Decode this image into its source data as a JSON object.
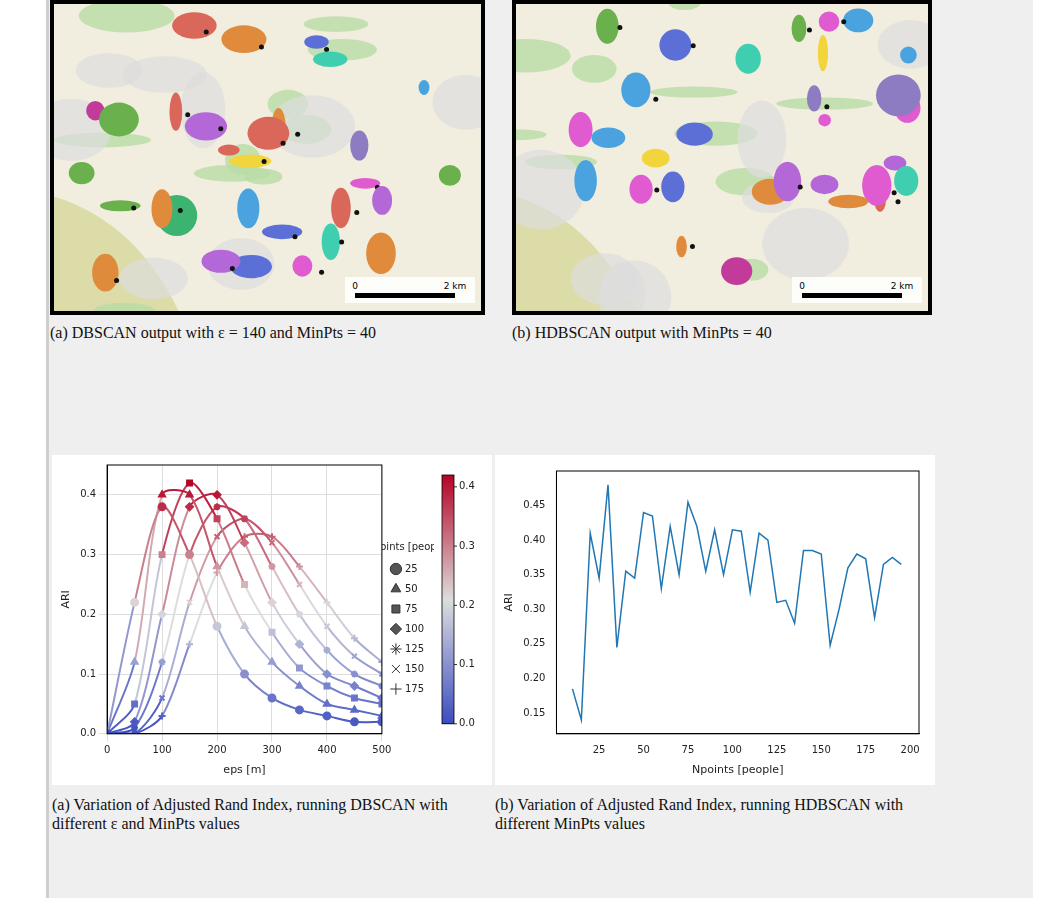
{
  "maps": [
    {
      "caption": "(a) DBSCAN output with ε = 140 and MinPts = 40",
      "scale_bar_labels": [
        "0",
        "2 km"
      ]
    },
    {
      "caption": "(b) HDBSCAN output with MinPts = 40",
      "scale_bar_labels": [
        "0",
        "2 km"
      ]
    }
  ],
  "chart_data": [
    {
      "type": "line",
      "caption": "(a) Variation of Adjusted Rand Index, running DBSCAN with different ε and MinPts values",
      "x_label": "eps [m]",
      "y_label": "ARI",
      "legend_title": "Npoints [people]",
      "x": [
        0,
        50,
        100,
        150,
        200,
        250,
        300,
        350,
        400,
        450,
        500
      ],
      "xlim": [
        0,
        500
      ],
      "xticks": [
        0,
        100,
        200,
        300,
        400,
        500
      ],
      "ylim": [
        0,
        0.45
      ],
      "yticks": [
        {
          "value": 0,
          "label": "0.0"
        },
        0.1,
        0.2,
        0.3,
        0.4
      ],
      "grid": true,
      "legend": "right",
      "series": [
        {
          "name": "25",
          "marker": "circle",
          "values": [
            0,
            0.22,
            0.38,
            0.3,
            0.18,
            0.1,
            0.06,
            0.04,
            0.03,
            0.02,
            0.02
          ]
        },
        {
          "name": "50",
          "marker": "triangle",
          "values": [
            0,
            0.12,
            0.4,
            0.4,
            0.28,
            0.18,
            0.12,
            0.08,
            0.05,
            0.04,
            0.03
          ]
        },
        {
          "name": "75",
          "marker": "rect",
          "values": [
            0,
            0.05,
            0.3,
            0.42,
            0.36,
            0.25,
            0.17,
            0.11,
            0.08,
            0.06,
            0.05
          ]
        },
        {
          "name": "100",
          "marker": "rectRot",
          "values": [
            0,
            0.02,
            0.2,
            0.38,
            0.4,
            0.32,
            0.22,
            0.15,
            0.1,
            0.08,
            0.06
          ]
        },
        {
          "name": "125",
          "marker": "star",
          "values": [
            0,
            0.01,
            0.12,
            0.3,
            0.38,
            0.36,
            0.28,
            0.2,
            0.14,
            0.1,
            0.08
          ]
        },
        {
          "name": "150",
          "marker": "crossRot",
          "values": [
            0,
            0,
            0.06,
            0.22,
            0.33,
            0.36,
            0.32,
            0.25,
            0.18,
            0.13,
            0.1
          ]
        },
        {
          "name": "175",
          "marker": "cross",
          "values": [
            0,
            0,
            0.03,
            0.15,
            0.27,
            0.33,
            0.33,
            0.28,
            0.22,
            0.16,
            0.12
          ]
        }
      ],
      "colorbar": {
        "range": [
          0,
          0.42
        ],
        "ticks": [
          {
            "value": 0,
            "label": "0.0"
          },
          0.1,
          0.2,
          0.3,
          0.4
        ]
      }
    },
    {
      "type": "line",
      "caption": "(b) Variation of Adjusted Rand Index, running HDBSCAN with different MinPts values",
      "x_label": "Npoints [people]",
      "y_label": "ARI",
      "x": [
        10,
        15,
        20,
        25,
        30,
        35,
        40,
        45,
        50,
        55,
        60,
        65,
        70,
        75,
        80,
        85,
        90,
        95,
        100,
        105,
        110,
        115,
        120,
        125,
        130,
        135,
        140,
        145,
        150,
        155,
        160,
        165,
        170,
        175,
        180,
        185,
        190,
        195
      ],
      "values": [
        0.185,
        0.14,
        0.41,
        0.345,
        0.48,
        0.245,
        0.355,
        0.345,
        0.44,
        0.435,
        0.33,
        0.42,
        0.35,
        0.455,
        0.42,
        0.355,
        0.415,
        0.35,
        0.415,
        0.413,
        0.325,
        0.41,
        0.4,
        0.31,
        0.313,
        0.28,
        0.385,
        0.385,
        0.38,
        0.248,
        0.3,
        0.36,
        0.38,
        0.373,
        0.288,
        0.365,
        0.375,
        0.365
      ],
      "color": "#1f77b4",
      "xlim": [
        1,
        205
      ],
      "xticks": [
        25,
        50,
        75,
        100,
        125,
        150,
        175,
        200
      ],
      "ylim": [
        0.12,
        0.5
      ],
      "yticks": [
        0.15,
        {
          "value": 0.2,
          "label": "0.20"
        },
        0.25,
        {
          "value": 0.3,
          "label": "0.30"
        },
        0.35,
        {
          "value": 0.4,
          "label": "0.40"
        },
        0.45
      ],
      "grid": false
    }
  ]
}
